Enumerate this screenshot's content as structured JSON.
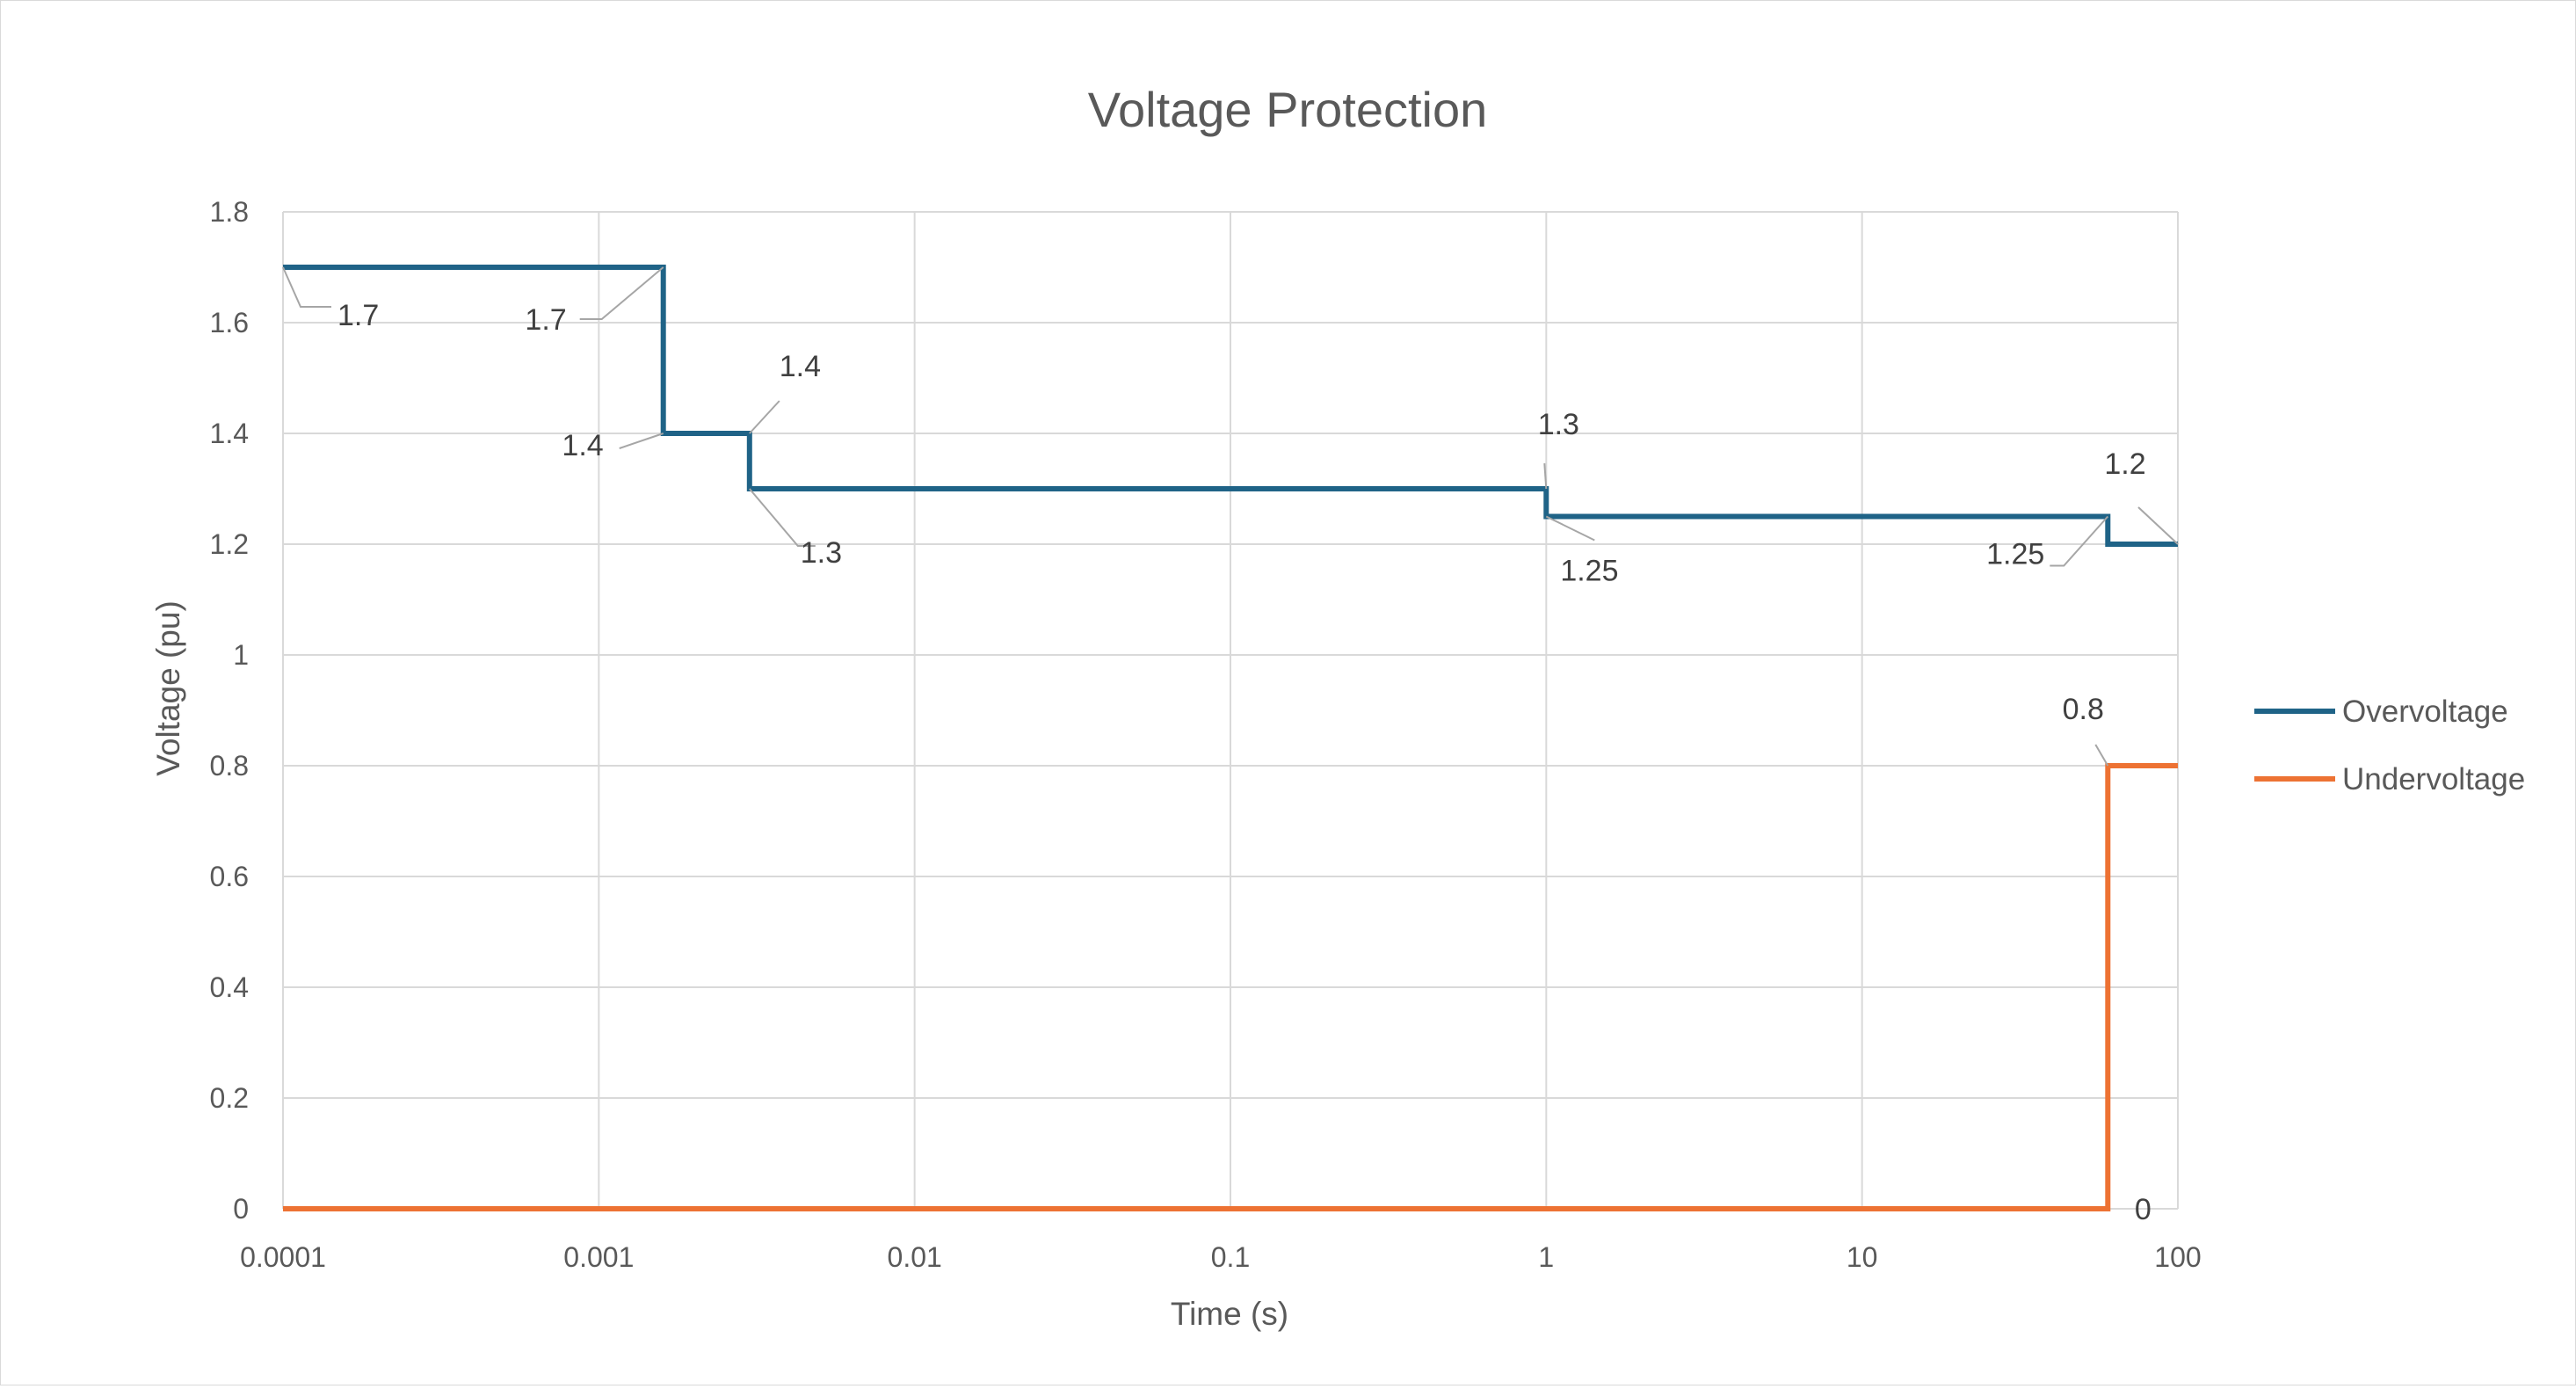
{
  "chart_data": {
    "type": "line",
    "title": "Voltage Protection",
    "xlabel": "Time (s)",
    "ylabel": "Voltage (pu)",
    "x_scale": "log",
    "xlim": [
      0.0001,
      100
    ],
    "ylim": [
      0,
      1.8
    ],
    "x_ticks": [
      "0.0001",
      "0.001",
      "0.01",
      "0.1",
      "1",
      "10",
      "100"
    ],
    "y_ticks": [
      "0",
      "0.2",
      "0.4",
      "0.6",
      "0.8",
      "1",
      "1.2",
      "1.4",
      "1.6",
      "1.8"
    ],
    "grid": true,
    "legend_position": "right",
    "series": [
      {
        "name": "Overvoltage",
        "color": "#1f6387",
        "points": [
          {
            "x": 0.0001,
            "y": 1.7,
            "label": "1.7"
          },
          {
            "x": 0.0016,
            "y": 1.7,
            "label": "1.7"
          },
          {
            "x": 0.0016,
            "y": 1.4,
            "label": "1.4"
          },
          {
            "x": 0.003,
            "y": 1.4,
            "label": "1.4"
          },
          {
            "x": 0.003,
            "y": 1.3,
            "label": "1.3"
          },
          {
            "x": 1,
            "y": 1.3,
            "label": "1.3"
          },
          {
            "x": 1,
            "y": 1.25,
            "label": "1.25"
          },
          {
            "x": 60,
            "y": 1.25,
            "label": "1.25"
          },
          {
            "x": 60,
            "y": 1.2,
            "label": ""
          },
          {
            "x": 100,
            "y": 1.2,
            "label": "1.2"
          }
        ]
      },
      {
        "name": "Undervoltage",
        "color": "#ed7233",
        "points": [
          {
            "x": 0.0001,
            "y": 0,
            "label": ""
          },
          {
            "x": 60,
            "y": 0,
            "label": "0"
          },
          {
            "x": 60,
            "y": 0.8,
            "label": "0.8"
          },
          {
            "x": 100,
            "y": 0.8,
            "label": ""
          }
        ]
      }
    ]
  }
}
